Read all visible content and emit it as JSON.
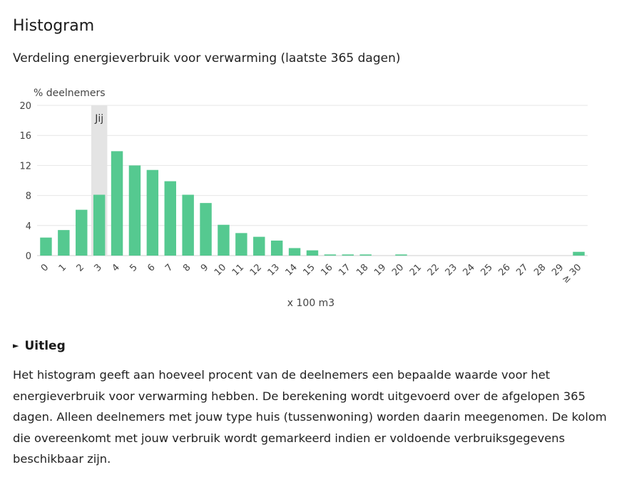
{
  "heading": "Histogram",
  "subtitle": "Verdeling energieverbruik voor verwarming (laatste 365 dagen)",
  "chart_data": {
    "type": "bar",
    "ylabel": "% deelnemers",
    "xlabel": "x 100 m3",
    "ylim": [
      0,
      20
    ],
    "yticks": [
      "0",
      "4",
      "8",
      "12",
      "16",
      "20"
    ],
    "categories": [
      "0",
      "1",
      "2",
      "3",
      "4",
      "5",
      "6",
      "7",
      "8",
      "9",
      "10",
      "11",
      "12",
      "13",
      "14",
      "15",
      "16",
      "17",
      "18",
      "19",
      "20",
      "21",
      "22",
      "23",
      "24",
      "25",
      "26",
      "27",
      "28",
      "29",
      "≥ 30"
    ],
    "values": [
      2.4,
      3.4,
      6.1,
      8.1,
      13.9,
      12.0,
      11.4,
      9.9,
      8.1,
      7.0,
      4.1,
      3.0,
      2.5,
      2.0,
      1.0,
      0.7,
      0.15,
      0.15,
      0.15,
      0,
      0.15,
      0,
      0,
      0,
      0,
      0,
      0,
      0,
      0,
      0,
      0.5
    ],
    "highlight_index": 3,
    "highlight_label": "Jij",
    "bar_color": "#55c990",
    "highlight_color": "#e4e4e4",
    "grid": true
  },
  "toggle_label": "Uitleg",
  "explanation": "Het histogram geeft aan hoeveel procent van de deelnemers een bepaalde waarde voor het energieverbruik voor verwarming hebben. De berekening wordt uitgevoerd over de afgelopen 365 dagen. Alleen deelnemers met jouw type huis (tussenwoning) worden daarin meegenomen. De kolom die overeenkomt met jouw verbruik wordt gemarkeerd indien er voldoende verbruiksgegevens beschikbaar zijn."
}
